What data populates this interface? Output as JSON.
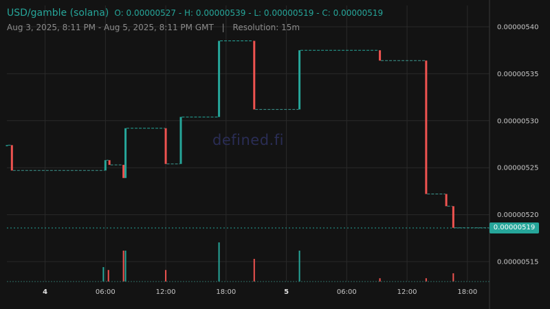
{
  "header": {
    "pair": "USD/gamble (solana)",
    "ohlc": "O: 0.00000527 - H: 0.00000539 - L: 0.00000519 - C: 0.00000519",
    "date_range": "Aug 3, 2025, 8:11 PM - Aug 5, 2025, 8:11 PM GMT",
    "separator": "|",
    "resolution": "Resolution: 15m"
  },
  "watermark": "defined.fi",
  "current_price": "0.00000519",
  "colors": {
    "up": "#26a69a",
    "down": "#ef5350",
    "background": "#131313",
    "grid": "#2a2a2a"
  },
  "chart_data": {
    "type": "candlestick",
    "y_ticks": [
      "0.00000540",
      "0.00000535",
      "0.00000530",
      "0.00000525",
      "0.00000520",
      "0.00000515"
    ],
    "x_ticks": [
      {
        "label": "4",
        "major": true
      },
      {
        "label": "06:00",
        "major": false
      },
      {
        "label": "12:00",
        "major": false
      },
      {
        "label": "18:00",
        "major": false
      },
      {
        "label": "5",
        "major": true
      },
      {
        "label": "06:00",
        "major": false
      },
      {
        "label": "12:00",
        "major": false
      },
      {
        "label": "18:00",
        "major": false
      }
    ],
    "x_tick_hours": [
      28,
      34,
      40,
      46,
      52,
      58,
      64,
      70
    ],
    "ylim": [
      5.13e-06,
      5.41e-06
    ],
    "xlim_hours": [
      24.2,
      72.2
    ],
    "candles": [
      {
        "t": 24.2,
        "o": 5.274,
        "c": 5.274,
        "dir": "up"
      },
      {
        "t": 24.7,
        "o": 5.274,
        "c": 5.247,
        "dir": "down"
      },
      {
        "t": 34.0,
        "o": 5.247,
        "c": 5.258,
        "dir": "up"
      },
      {
        "t": 34.4,
        "o": 5.258,
        "c": 5.253,
        "dir": "down"
      },
      {
        "t": 35.8,
        "o": 5.253,
        "c": 5.239,
        "dir": "down"
      },
      {
        "t": 36.0,
        "o": 5.239,
        "c": 5.292,
        "dir": "up"
      },
      {
        "t": 40.0,
        "o": 5.292,
        "c": 5.254,
        "dir": "down"
      },
      {
        "t": 41.5,
        "o": 5.254,
        "c": 5.304,
        "dir": "up"
      },
      {
        "t": 45.3,
        "o": 5.304,
        "c": 5.385,
        "dir": "up"
      },
      {
        "t": 48.8,
        "o": 5.385,
        "c": 5.312,
        "dir": "down"
      },
      {
        "t": 53.3,
        "o": 5.312,
        "c": 5.375,
        "dir": "up"
      },
      {
        "t": 61.3,
        "o": 5.375,
        "c": 5.364,
        "dir": "down"
      },
      {
        "t": 65.9,
        "o": 5.364,
        "c": 5.222,
        "dir": "down"
      },
      {
        "t": 67.9,
        "o": 5.222,
        "c": 5.209,
        "dir": "down"
      },
      {
        "t": 68.6,
        "o": 5.209,
        "c": 5.186,
        "dir": "down"
      },
      {
        "t": 72.2,
        "o": 5.186,
        "c": 5.186,
        "dir": "flat"
      }
    ],
    "volume": [
      {
        "t": 33.8,
        "v": 0.35,
        "dir": "up"
      },
      {
        "t": 34.3,
        "v": 0.28,
        "dir": "down"
      },
      {
        "t": 35.8,
        "v": 0.75,
        "dir": "down"
      },
      {
        "t": 36.0,
        "v": 0.75,
        "dir": "up"
      },
      {
        "t": 40.0,
        "v": 0.28,
        "dir": "down"
      },
      {
        "t": 45.3,
        "v": 0.95,
        "dir": "up"
      },
      {
        "t": 48.8,
        "v": 0.55,
        "dir": "down"
      },
      {
        "t": 53.3,
        "v": 0.75,
        "dir": "up"
      },
      {
        "t": 61.3,
        "v": 0.08,
        "dir": "down"
      },
      {
        "t": 65.9,
        "v": 0.08,
        "dir": "down"
      },
      {
        "t": 68.6,
        "v": 0.2,
        "dir": "down"
      }
    ]
  }
}
